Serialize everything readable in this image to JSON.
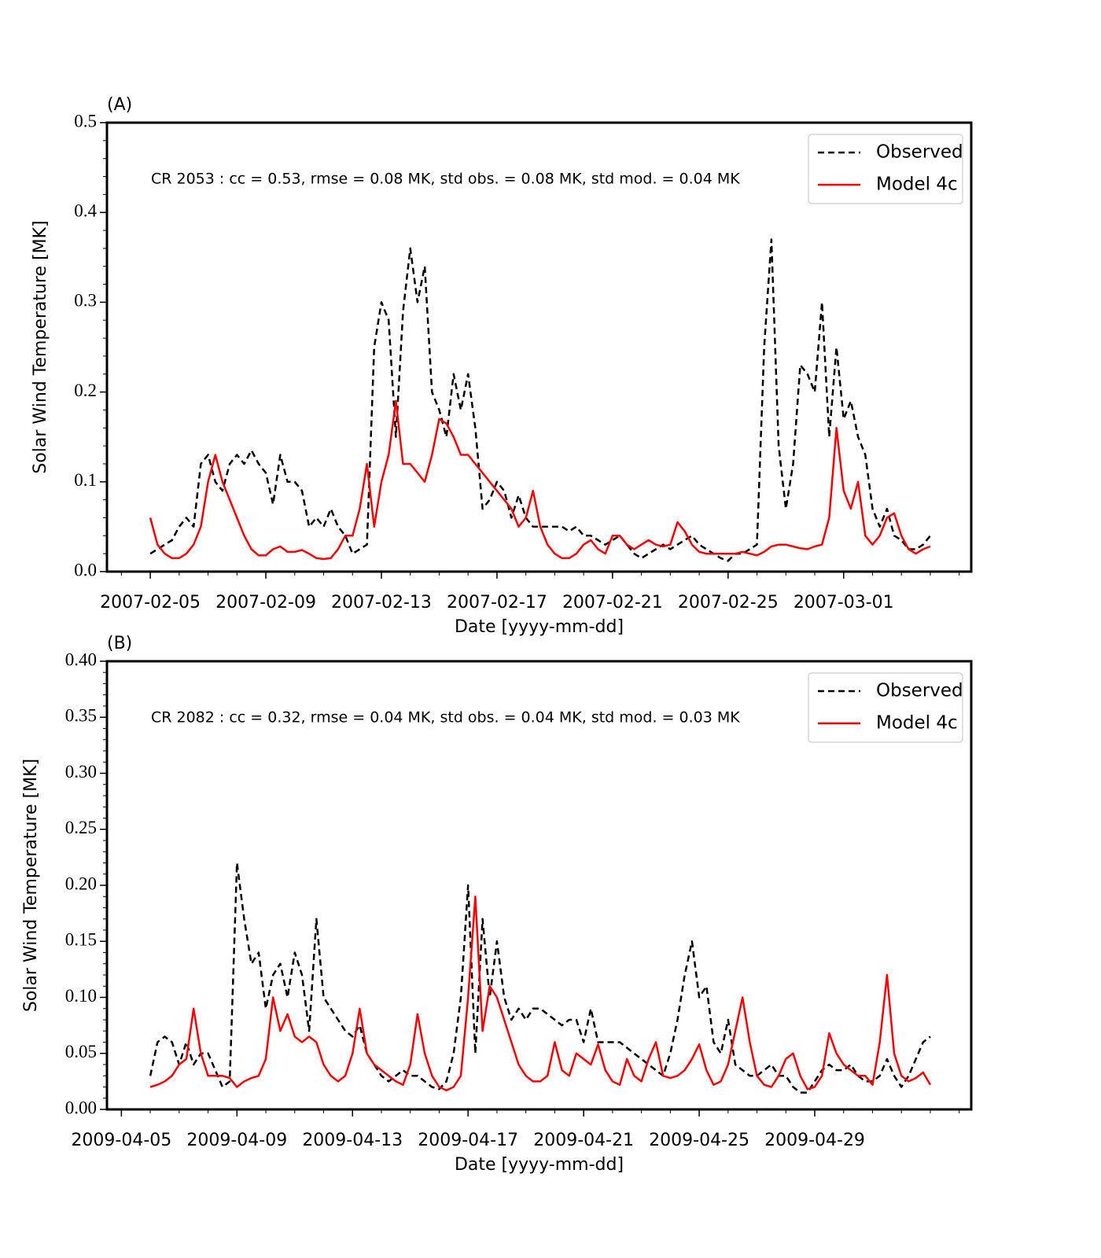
{
  "chart_data": [
    {
      "type": "line",
      "panel_label": "(A)",
      "annotation": "CR 2053 : cc = 0.53, rmse = 0.08 MK, std obs. = 0.08 MK, std mod. = 0.04 MK",
      "xlabel": "Date [yyyy-mm-dd]",
      "ylabel": "Solar Wind Temperature [MK]",
      "legend": "upper right",
      "xlim": [
        "2007-02-03T12:00",
        "2007-03-05T10:00"
      ],
      "xticks": [
        "2007-02-05",
        "2007-02-09",
        "2007-02-13",
        "2007-02-17",
        "2007-02-21",
        "2007-02-25",
        "2007-03-01"
      ],
      "ylim": [
        0,
        0.5
      ],
      "yticks": [
        {
          "value": 0,
          "label": "0.0"
        },
        0.1,
        0.2,
        0.3,
        0.4,
        0.5
      ],
      "x": [
        "2007-02-05T00:00",
        "2007-02-05T06:00",
        "2007-02-05T12:00",
        "2007-02-05T18:00",
        "2007-02-06T00:00",
        "2007-02-06T06:00",
        "2007-02-06T12:00",
        "2007-02-06T18:00",
        "2007-02-07T00:00",
        "2007-02-07T06:00",
        "2007-02-07T12:00",
        "2007-02-07T18:00",
        "2007-02-08T00:00",
        "2007-02-08T06:00",
        "2007-02-08T12:00",
        "2007-02-08T18:00",
        "2007-02-09T00:00",
        "2007-02-09T06:00",
        "2007-02-09T12:00",
        "2007-02-09T18:00",
        "2007-02-10T00:00",
        "2007-02-10T06:00",
        "2007-02-10T12:00",
        "2007-02-10T18:00",
        "2007-02-11T00:00",
        "2007-02-11T06:00",
        "2007-02-11T12:00",
        "2007-02-11T18:00",
        "2007-02-12T00:00",
        "2007-02-12T06:00",
        "2007-02-12T12:00",
        "2007-02-12T18:00",
        "2007-02-13T00:00",
        "2007-02-13T06:00",
        "2007-02-13T12:00",
        "2007-02-13T18:00",
        "2007-02-14T00:00",
        "2007-02-14T06:00",
        "2007-02-14T12:00",
        "2007-02-14T18:00",
        "2007-02-15T00:00",
        "2007-02-15T06:00",
        "2007-02-15T12:00",
        "2007-02-15T18:00",
        "2007-02-16T00:00",
        "2007-02-16T06:00",
        "2007-02-16T12:00",
        "2007-02-16T18:00",
        "2007-02-17T00:00",
        "2007-02-17T06:00",
        "2007-02-17T12:00",
        "2007-02-17T18:00",
        "2007-02-18T00:00",
        "2007-02-18T06:00",
        "2007-02-18T12:00",
        "2007-02-18T18:00",
        "2007-02-19T00:00",
        "2007-02-19T06:00",
        "2007-02-19T12:00",
        "2007-02-19T18:00",
        "2007-02-20T00:00",
        "2007-02-20T06:00",
        "2007-02-20T12:00",
        "2007-02-20T18:00",
        "2007-02-21T00:00",
        "2007-02-21T06:00",
        "2007-02-21T12:00",
        "2007-02-21T18:00",
        "2007-02-22T00:00",
        "2007-02-22T06:00",
        "2007-02-22T12:00",
        "2007-02-22T18:00",
        "2007-02-23T00:00",
        "2007-02-23T06:00",
        "2007-02-23T12:00",
        "2007-02-23T18:00",
        "2007-02-24T00:00",
        "2007-02-24T06:00",
        "2007-02-24T12:00",
        "2007-02-24T18:00",
        "2007-02-25T00:00",
        "2007-02-25T06:00",
        "2007-02-25T12:00",
        "2007-02-25T18:00",
        "2007-02-26T00:00",
        "2007-02-26T06:00",
        "2007-02-26T12:00",
        "2007-02-26T18:00",
        "2007-02-27T00:00",
        "2007-02-27T06:00",
        "2007-02-27T12:00",
        "2007-02-27T18:00",
        "2007-02-28T00:00",
        "2007-02-28T06:00",
        "2007-02-28T12:00",
        "2007-02-28T18:00",
        "2007-03-01T00:00",
        "2007-03-01T06:00",
        "2007-03-01T12:00",
        "2007-03-01T18:00",
        "2007-03-02T00:00",
        "2007-03-02T06:00",
        "2007-03-02T12:00",
        "2007-03-02T18:00",
        "2007-03-03T00:00",
        "2007-03-03T06:00",
        "2007-03-03T12:00",
        "2007-03-03T18:00",
        "2007-03-04T00:00"
      ],
      "series": [
        {
          "name": "Observed",
          "color": "#000000",
          "linestyle": "dashed",
          "values": [
            0.02,
            0.025,
            0.03,
            0.035,
            0.05,
            0.06,
            0.05,
            0.12,
            0.13,
            0.1,
            0.09,
            0.12,
            0.13,
            0.12,
            0.135,
            0.12,
            0.11,
            0.075,
            0.13,
            0.1,
            0.1,
            0.09,
            0.05,
            0.06,
            0.05,
            0.07,
            0.05,
            0.04,
            0.02,
            0.025,
            0.03,
            0.25,
            0.3,
            0.28,
            0.15,
            0.29,
            0.36,
            0.3,
            0.34,
            0.2,
            0.18,
            0.15,
            0.22,
            0.18,
            0.22,
            0.16,
            0.07,
            0.08,
            0.1,
            0.09,
            0.06,
            0.085,
            0.06,
            0.05,
            0.05,
            0.05,
            0.05,
            0.05,
            0.045,
            0.05,
            0.04,
            0.04,
            0.035,
            0.03,
            0.035,
            0.04,
            0.03,
            0.02,
            0.015,
            0.02,
            0.025,
            0.03,
            0.025,
            0.03,
            0.035,
            0.04,
            0.03,
            0.025,
            0.02,
            0.015,
            0.012,
            0.02,
            0.02,
            0.025,
            0.03,
            0.25,
            0.37,
            0.14,
            0.07,
            0.12,
            0.23,
            0.22,
            0.2,
            0.3,
            0.15,
            0.25,
            0.17,
            0.19,
            0.15,
            0.13,
            0.07,
            0.05,
            0.07,
            0.04,
            0.035,
            0.025,
            0.025,
            0.03,
            0.04
          ]
        },
        {
          "name": "Model 4c",
          "color": "#ff0000",
          "linestyle": "solid",
          "values": [
            0.06,
            0.03,
            0.02,
            0.015,
            0.015,
            0.02,
            0.03,
            0.05,
            0.1,
            0.13,
            0.1,
            0.08,
            0.06,
            0.04,
            0.025,
            0.018,
            0.018,
            0.025,
            0.028,
            0.022,
            0.022,
            0.024,
            0.02,
            0.015,
            0.014,
            0.015,
            0.025,
            0.04,
            0.04,
            0.07,
            0.12,
            0.05,
            0.1,
            0.13,
            0.19,
            0.12,
            0.12,
            0.11,
            0.1,
            0.13,
            0.17,
            0.165,
            0.15,
            0.13,
            0.13,
            0.12,
            0.11,
            0.1,
            0.09,
            0.08,
            0.07,
            0.05,
            0.06,
            0.09,
            0.05,
            0.03,
            0.02,
            0.015,
            0.015,
            0.02,
            0.03,
            0.035,
            0.025,
            0.02,
            0.04,
            0.04,
            0.03,
            0.025,
            0.03,
            0.035,
            0.03,
            0.028,
            0.03,
            0.055,
            0.045,
            0.03,
            0.022,
            0.02,
            0.02,
            0.02,
            0.02,
            0.02,
            0.022,
            0.02,
            0.018,
            0.022,
            0.028,
            0.03,
            0.03,
            0.028,
            0.026,
            0.025,
            0.028,
            0.03,
            0.06,
            0.16,
            0.09,
            0.07,
            0.1,
            0.04,
            0.03,
            0.04,
            0.06,
            0.065,
            0.04,
            0.025,
            0.02,
            0.025,
            0.028
          ]
        }
      ]
    },
    {
      "type": "line",
      "panel_label": "(B)",
      "annotation": "CR 2082 : cc = 0.32, rmse = 0.04 MK, std obs. = 0.04 MK, std mod. = 0.03 MK",
      "xlabel": "Date [yyyy-mm-dd]",
      "ylabel": "Solar Wind Temperature [MK]",
      "legend": "upper right",
      "xlim": [
        "2009-04-04T12:00",
        "2009-05-04T10:00"
      ],
      "xticks": [
        "2009-04-05",
        "2009-04-09",
        "2009-04-13",
        "2009-04-17",
        "2009-04-21",
        "2009-04-25",
        "2009-04-29"
      ],
      "ylim": [
        0,
        0.4
      ],
      "yticks": [
        {
          "value": 0,
          "label": "0.00"
        },
        0.05,
        {
          "value": 0.1,
          "label": "0.10"
        },
        0.15,
        {
          "value": 0.2,
          "label": "0.20"
        },
        0.25,
        {
          "value": 0.3,
          "label": "0.30"
        },
        0.35,
        {
          "value": 0.4,
          "label": "0.40"
        }
      ],
      "x": [
        "2009-04-06T00:00",
        "2009-04-06T06:00",
        "2009-04-06T12:00",
        "2009-04-06T18:00",
        "2009-04-07T00:00",
        "2009-04-07T06:00",
        "2009-04-07T12:00",
        "2009-04-07T18:00",
        "2009-04-08T00:00",
        "2009-04-08T06:00",
        "2009-04-08T12:00",
        "2009-04-08T18:00",
        "2009-04-09T00:00",
        "2009-04-09T06:00",
        "2009-04-09T12:00",
        "2009-04-09T18:00",
        "2009-04-10T00:00",
        "2009-04-10T06:00",
        "2009-04-10T12:00",
        "2009-04-10T18:00",
        "2009-04-11T00:00",
        "2009-04-11T06:00",
        "2009-04-11T12:00",
        "2009-04-11T18:00",
        "2009-04-12T00:00",
        "2009-04-12T06:00",
        "2009-04-12T12:00",
        "2009-04-12T18:00",
        "2009-04-13T00:00",
        "2009-04-13T06:00",
        "2009-04-13T12:00",
        "2009-04-13T18:00",
        "2009-04-14T00:00",
        "2009-04-14T06:00",
        "2009-04-14T12:00",
        "2009-04-14T18:00",
        "2009-04-15T00:00",
        "2009-04-15T06:00",
        "2009-04-15T12:00",
        "2009-04-15T18:00",
        "2009-04-16T00:00",
        "2009-04-16T06:00",
        "2009-04-16T12:00",
        "2009-04-16T18:00",
        "2009-04-17T00:00",
        "2009-04-17T06:00",
        "2009-04-17T12:00",
        "2009-04-17T18:00",
        "2009-04-18T00:00",
        "2009-04-18T06:00",
        "2009-04-18T12:00",
        "2009-04-18T18:00",
        "2009-04-19T00:00",
        "2009-04-19T06:00",
        "2009-04-19T12:00",
        "2009-04-19T18:00",
        "2009-04-20T00:00",
        "2009-04-20T06:00",
        "2009-04-20T12:00",
        "2009-04-20T18:00",
        "2009-04-21T00:00",
        "2009-04-21T06:00",
        "2009-04-21T12:00",
        "2009-04-21T18:00",
        "2009-04-22T00:00",
        "2009-04-22T06:00",
        "2009-04-22T12:00",
        "2009-04-22T18:00",
        "2009-04-23T00:00",
        "2009-04-23T06:00",
        "2009-04-23T12:00",
        "2009-04-23T18:00",
        "2009-04-24T00:00",
        "2009-04-24T06:00",
        "2009-04-24T12:00",
        "2009-04-24T18:00",
        "2009-04-25T00:00",
        "2009-04-25T06:00",
        "2009-04-25T12:00",
        "2009-04-25T18:00",
        "2009-04-26T00:00",
        "2009-04-26T06:00",
        "2009-04-26T12:00",
        "2009-04-26T18:00",
        "2009-04-27T00:00",
        "2009-04-27T06:00",
        "2009-04-27T12:00",
        "2009-04-27T18:00",
        "2009-04-28T00:00",
        "2009-04-28T06:00",
        "2009-04-28T12:00",
        "2009-04-28T18:00",
        "2009-04-29T00:00",
        "2009-04-29T06:00",
        "2009-04-29T12:00",
        "2009-04-29T18:00",
        "2009-04-30T00:00",
        "2009-04-30T06:00",
        "2009-04-30T12:00",
        "2009-04-30T18:00",
        "2009-05-01T00:00",
        "2009-05-01T06:00",
        "2009-05-01T12:00",
        "2009-05-01T18:00",
        "2009-05-02T00:00",
        "2009-05-02T06:00",
        "2009-05-02T12:00",
        "2009-05-02T18:00",
        "2009-05-03T00:00"
      ],
      "series": [
        {
          "name": "Observed",
          "color": "#000000",
          "linestyle": "dashed",
          "values": [
            0.03,
            0.06,
            0.065,
            0.06,
            0.04,
            0.06,
            0.04,
            0.05,
            0.05,
            0.035,
            0.02,
            0.025,
            0.22,
            0.17,
            0.13,
            0.14,
            0.09,
            0.12,
            0.13,
            0.1,
            0.14,
            0.12,
            0.07,
            0.17,
            0.1,
            0.09,
            0.08,
            0.07,
            0.065,
            0.075,
            0.05,
            0.04,
            0.03,
            0.025,
            0.03,
            0.035,
            0.03,
            0.03,
            0.025,
            0.02,
            0.018,
            0.025,
            0.05,
            0.1,
            0.2,
            0.05,
            0.17,
            0.1,
            0.15,
            0.1,
            0.08,
            0.09,
            0.08,
            0.09,
            0.09,
            0.085,
            0.08,
            0.075,
            0.08,
            0.08,
            0.06,
            0.09,
            0.06,
            0.06,
            0.06,
            0.06,
            0.055,
            0.05,
            0.045,
            0.04,
            0.035,
            0.03,
            0.05,
            0.08,
            0.12,
            0.15,
            0.1,
            0.11,
            0.06,
            0.05,
            0.08,
            0.04,
            0.035,
            0.03,
            0.03,
            0.035,
            0.04,
            0.03,
            0.03,
            0.02,
            0.015,
            0.015,
            0.025,
            0.035,
            0.04,
            0.035,
            0.035,
            0.04,
            0.03,
            0.025,
            0.025,
            0.03,
            0.045,
            0.03,
            0.02,
            0.03,
            0.045,
            0.06,
            0.065
          ]
        },
        {
          "name": "Model 4c",
          "color": "#ff0000",
          "linestyle": "solid",
          "values": [
            0.02,
            0.022,
            0.025,
            0.03,
            0.04,
            0.045,
            0.09,
            0.05,
            0.03,
            0.03,
            0.03,
            0.028,
            0.02,
            0.025,
            0.028,
            0.03,
            0.045,
            0.1,
            0.07,
            0.085,
            0.065,
            0.06,
            0.065,
            0.06,
            0.04,
            0.03,
            0.025,
            0.03,
            0.05,
            0.09,
            0.05,
            0.04,
            0.035,
            0.03,
            0.025,
            0.022,
            0.04,
            0.085,
            0.05,
            0.03,
            0.02,
            0.017,
            0.02,
            0.03,
            0.1,
            0.19,
            0.07,
            0.11,
            0.1,
            0.08,
            0.06,
            0.04,
            0.03,
            0.025,
            0.025,
            0.03,
            0.06,
            0.035,
            0.03,
            0.05,
            0.045,
            0.04,
            0.058,
            0.035,
            0.025,
            0.022,
            0.045,
            0.03,
            0.025,
            0.045,
            0.06,
            0.03,
            0.028,
            0.03,
            0.035,
            0.045,
            0.058,
            0.035,
            0.022,
            0.025,
            0.04,
            0.07,
            0.1,
            0.06,
            0.03,
            0.022,
            0.02,
            0.03,
            0.045,
            0.05,
            0.03,
            0.018,
            0.02,
            0.03,
            0.068,
            0.05,
            0.04,
            0.035,
            0.03,
            0.03,
            0.022,
            0.06,
            0.12,
            0.05,
            0.03,
            0.025,
            0.028,
            0.033,
            0.022
          ]
        }
      ]
    }
  ]
}
